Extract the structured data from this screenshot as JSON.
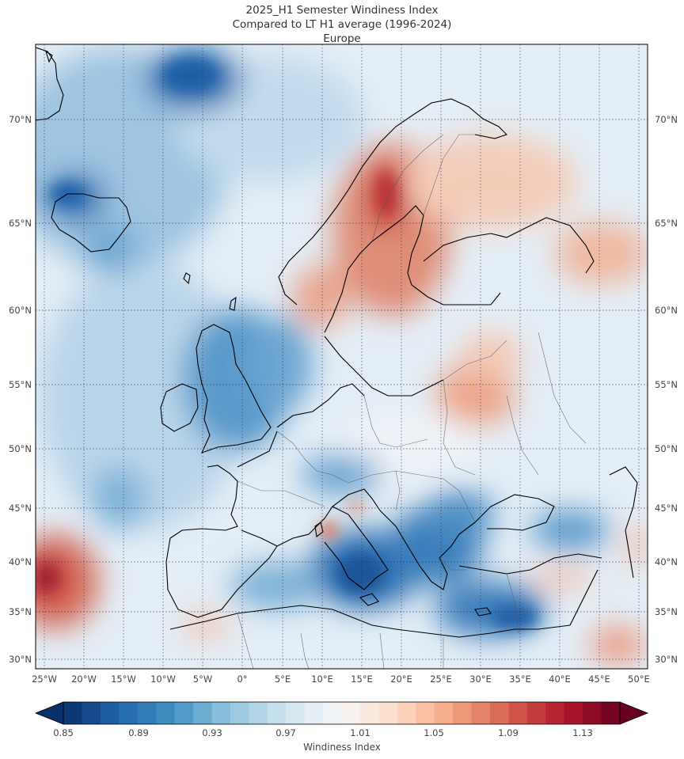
{
  "map": {
    "title_line1": "2025_H1 Semester Windiness Index",
    "title_line2": "Compared to LT H1 average (1996-2024)",
    "title_line3": "Europe",
    "lat_labels": [
      "70°N",
      "65°N",
      "60°N",
      "55°N",
      "50°N",
      "45°N",
      "40°N",
      "35°N",
      "30°N"
    ],
    "lon_labels": [
      "25°W",
      "20°W",
      "15°W",
      "10°W",
      "5°W",
      "0°",
      "5°E",
      "10°E",
      "15°E",
      "20°E",
      "25°E",
      "30°E",
      "35°E",
      "40°E",
      "45°E",
      "50°E"
    ],
    "extent": {
      "lon_min": -26,
      "lon_max": 50,
      "lat_min": 29,
      "lat_max": 74
    },
    "colors": {
      "deep_blue": "#0b3c7a",
      "mid_blue": "#4a90c6",
      "light_blue": "#c6dcee",
      "neutral": "#f5f2f0",
      "light_red": "#f3c2aa",
      "mid_red": "#d9604c",
      "deep_red": "#8e1a24"
    }
  },
  "colorbar": {
    "label": "Windiness Index",
    "tick_labels": [
      "0.85",
      "0.89",
      "0.93",
      "0.97",
      "1.01",
      "1.05",
      "1.09",
      "1.13"
    ],
    "min": 0.85,
    "max": 1.15,
    "steps": 0.01,
    "colormap": "RdBu_r"
  }
}
